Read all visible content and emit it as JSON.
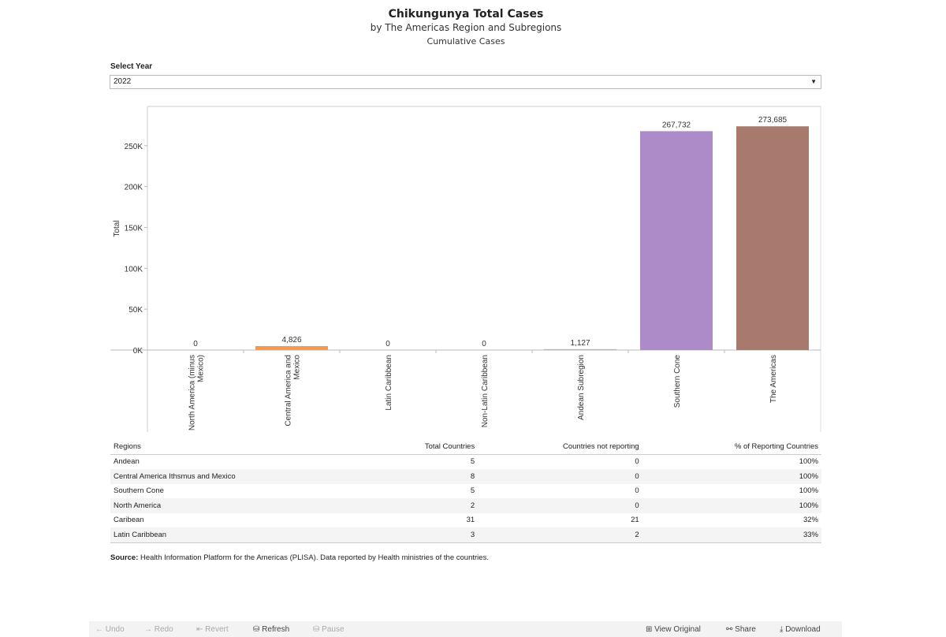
{
  "title": "Chikungunya Total Cases",
  "subtitle": "by The Americas Region and Subregions",
  "subtitle2": "Cumulative Cases",
  "filter": {
    "label": "Select Year",
    "value": "2022"
  },
  "chart_data": {
    "type": "bar",
    "categories": [
      "North America (minus Mexico)",
      "Central America and Mexico",
      "Latin Caribbean",
      "Non-Latin Caribbean",
      "Andean Subregion",
      "Southern Cone",
      "The Americas"
    ],
    "values": [
      0,
      4826,
      0,
      0,
      1127,
      267732,
      273685
    ],
    "labels": [
      "0",
      "4,826",
      "0",
      "0",
      "1,127",
      "267,732",
      "273,685"
    ],
    "colors": [
      "#4e79a7",
      "#f89a4c",
      "#59a14f",
      "#e15759",
      "#a8bccb",
      "#ad8bc9",
      "#a77a6d"
    ],
    "ylabel": "Total",
    "yticks": [
      0,
      50000,
      100000,
      150000,
      200000,
      250000
    ],
    "ytick_labels": [
      "0K",
      "50K",
      "100K",
      "150K",
      "200K",
      "250K"
    ],
    "ylim": [
      0,
      298000
    ]
  },
  "table": {
    "headers": [
      "Regions",
      "Total Countries",
      "Countries not reporting",
      "% of Reporting Countries"
    ],
    "rows": [
      [
        "Andean",
        "5",
        "0",
        "100%"
      ],
      [
        "Central America Ithsmus and Mexico",
        "8",
        "0",
        "100%"
      ],
      [
        "Southern Cone",
        "5",
        "0",
        "100%"
      ],
      [
        "North America",
        "2",
        "0",
        "100%"
      ],
      [
        "Caribean",
        "31",
        "21",
        "32%"
      ],
      [
        "Latin Caribbean",
        "3",
        "2",
        "33%"
      ]
    ]
  },
  "source": {
    "label": "Source:",
    "text": " Health Information Platform for the Americas (PLISA). Data reported by Health ministries of the countries."
  },
  "toolbar": {
    "undo": "← Undo",
    "redo": "→ Redo",
    "revert": "⇤ Revert",
    "refresh": "⛁ Refresh",
    "pause": "⛁ Pause",
    "view_original": "⊞ View Original",
    "share": "⚯ Share",
    "download": "⤓ Download"
  }
}
